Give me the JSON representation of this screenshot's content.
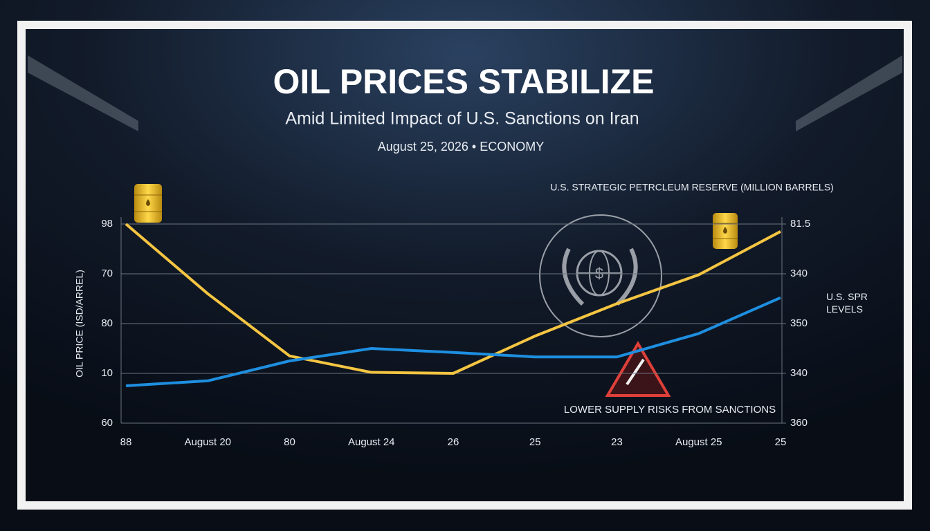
{
  "chart_data": {
    "type": "line",
    "title": "OIL PRICES STABILIZE",
    "subtitle": "Amid Limited Impact of U.S. Sanctions on Iran",
    "dateline": "August 25, 2026 • ECONOMY",
    "y_label": "OIL PRICE (ISD/ARREL)",
    "y2_label": "U.S. STRATEGIC PETRCLEUM RESERVE (MILLION BARRELS)",
    "annotation": "LOWER SUPPLY RISKS FROM SANCTIONS",
    "categories": [
      "88",
      "August 20",
      "80",
      "August 24",
      "26",
      "25",
      "23",
      "August 25",
      "25"
    ],
    "ylim": [
      0,
      4
    ],
    "yticks": [
      {
        "value": 0,
        "label": "60"
      },
      {
        "value": 1,
        "label": "10"
      },
      {
        "value": 2,
        "label": "80"
      },
      {
        "value": 3,
        "label": "70"
      },
      {
        "value": 4,
        "label": "98"
      }
    ],
    "y2lim": [
      0,
      4
    ],
    "y2ticks": [
      {
        "value": 0,
        "label": "360"
      },
      {
        "value": 1,
        "label": "340"
      },
      {
        "value": 2,
        "label": "350"
      },
      {
        "value": 3,
        "label": "340"
      },
      {
        "value": 4,
        "label": "81.5"
      }
    ],
    "grid": true,
    "series": [
      {
        "color": "#f5c542",
        "values": [
          4.0,
          2.6,
          1.35,
          1.02,
          1.0,
          1.75,
          2.4,
          2.98,
          3.85
        ]
      },
      {
        "name": "U.S. SPR LEVELS",
        "color": "#1e8fe0",
        "axis": "y2",
        "values": [
          0.75,
          0.85,
          1.25,
          1.5,
          1.42,
          1.33,
          1.33,
          1.8,
          2.52
        ]
      }
    ]
  }
}
